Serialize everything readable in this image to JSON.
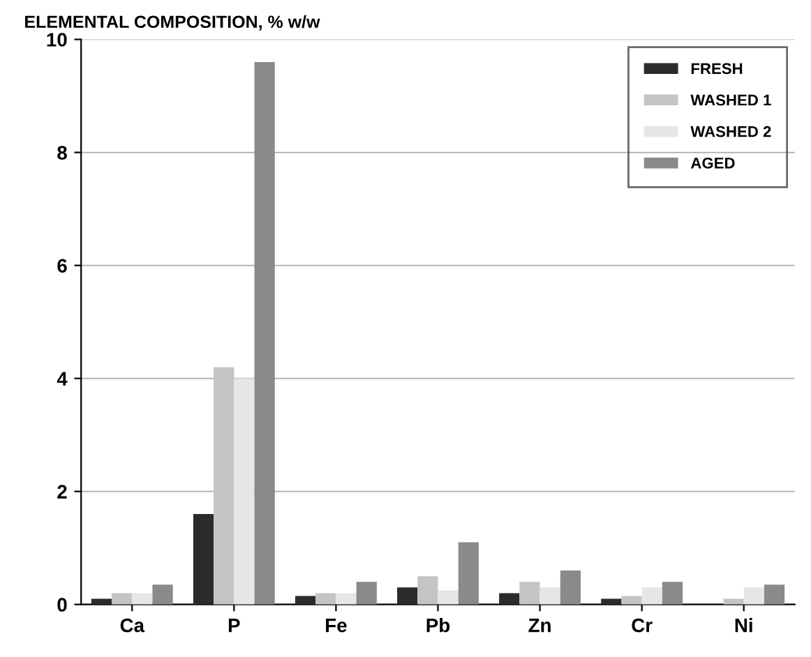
{
  "chart_data": {
    "type": "bar",
    "title": "ELEMENTAL COMPOSITION, % w/w",
    "categories": [
      "Ca",
      "P",
      "Fe",
      "Pb",
      "Zn",
      "Cr",
      "Ni"
    ],
    "series": [
      {
        "name": "FRESH",
        "color": "#2b2b2b",
        "values": [
          0.1,
          1.6,
          0.15,
          0.3,
          0.2,
          0.1,
          0.0
        ]
      },
      {
        "name": "WASHED 1",
        "color": "#c4c4c4",
        "values": [
          0.2,
          4.2,
          0.2,
          0.5,
          0.4,
          0.15,
          0.1
        ]
      },
      {
        "name": "WASHED 2",
        "color": "#e6e6e6",
        "values": [
          0.2,
          4.0,
          0.2,
          0.25,
          0.3,
          0.3,
          0.3
        ]
      },
      {
        "name": "AGED",
        "color": "#8a8a8a",
        "values": [
          0.35,
          9.6,
          0.4,
          1.1,
          0.6,
          0.4,
          0.35
        ]
      }
    ],
    "ylim": [
      0,
      10
    ],
    "yticks": [
      0,
      2,
      4,
      6,
      8,
      10
    ],
    "grid": "y",
    "legend": "top right"
  }
}
